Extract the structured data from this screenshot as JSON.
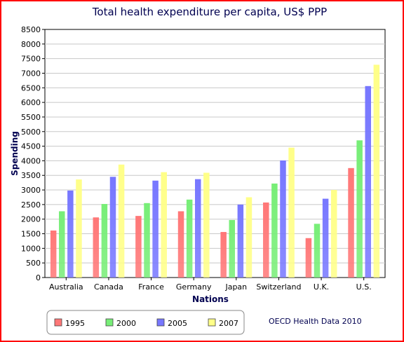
{
  "chart_data": {
    "type": "bar",
    "title": "Total health expenditure per capita, US$ PPP",
    "xlabel": "Nations",
    "ylabel": "Spending",
    "ylim": [
      0,
      8500
    ],
    "ytick_step": 500,
    "categories": [
      "Australia",
      "Canada",
      "France",
      "Germany",
      "Japan",
      "Switzerland",
      "U.K.",
      "U.S."
    ],
    "series": [
      {
        "name": "1995",
        "color": "#ff7777",
        "values": [
          1610,
          2060,
          2110,
          2270,
          1560,
          2570,
          1350,
          3750
        ]
      },
      {
        "name": "2000",
        "color": "#77ee77",
        "values": [
          2270,
          2520,
          2550,
          2670,
          1970,
          3220,
          1840,
          4700
        ]
      },
      {
        "name": "2005",
        "color": "#7777ff",
        "values": [
          2980,
          3450,
          3320,
          3370,
          2500,
          4010,
          2700,
          6560
        ]
      },
      {
        "name": "2007",
        "color": "#ffff88",
        "values": [
          3360,
          3870,
          3610,
          3590,
          2750,
          4450,
          3000,
          7290
        ]
      }
    ],
    "grid": true,
    "legend_position": "bottom-left",
    "source_note": "OECD Health Data 2010"
  }
}
